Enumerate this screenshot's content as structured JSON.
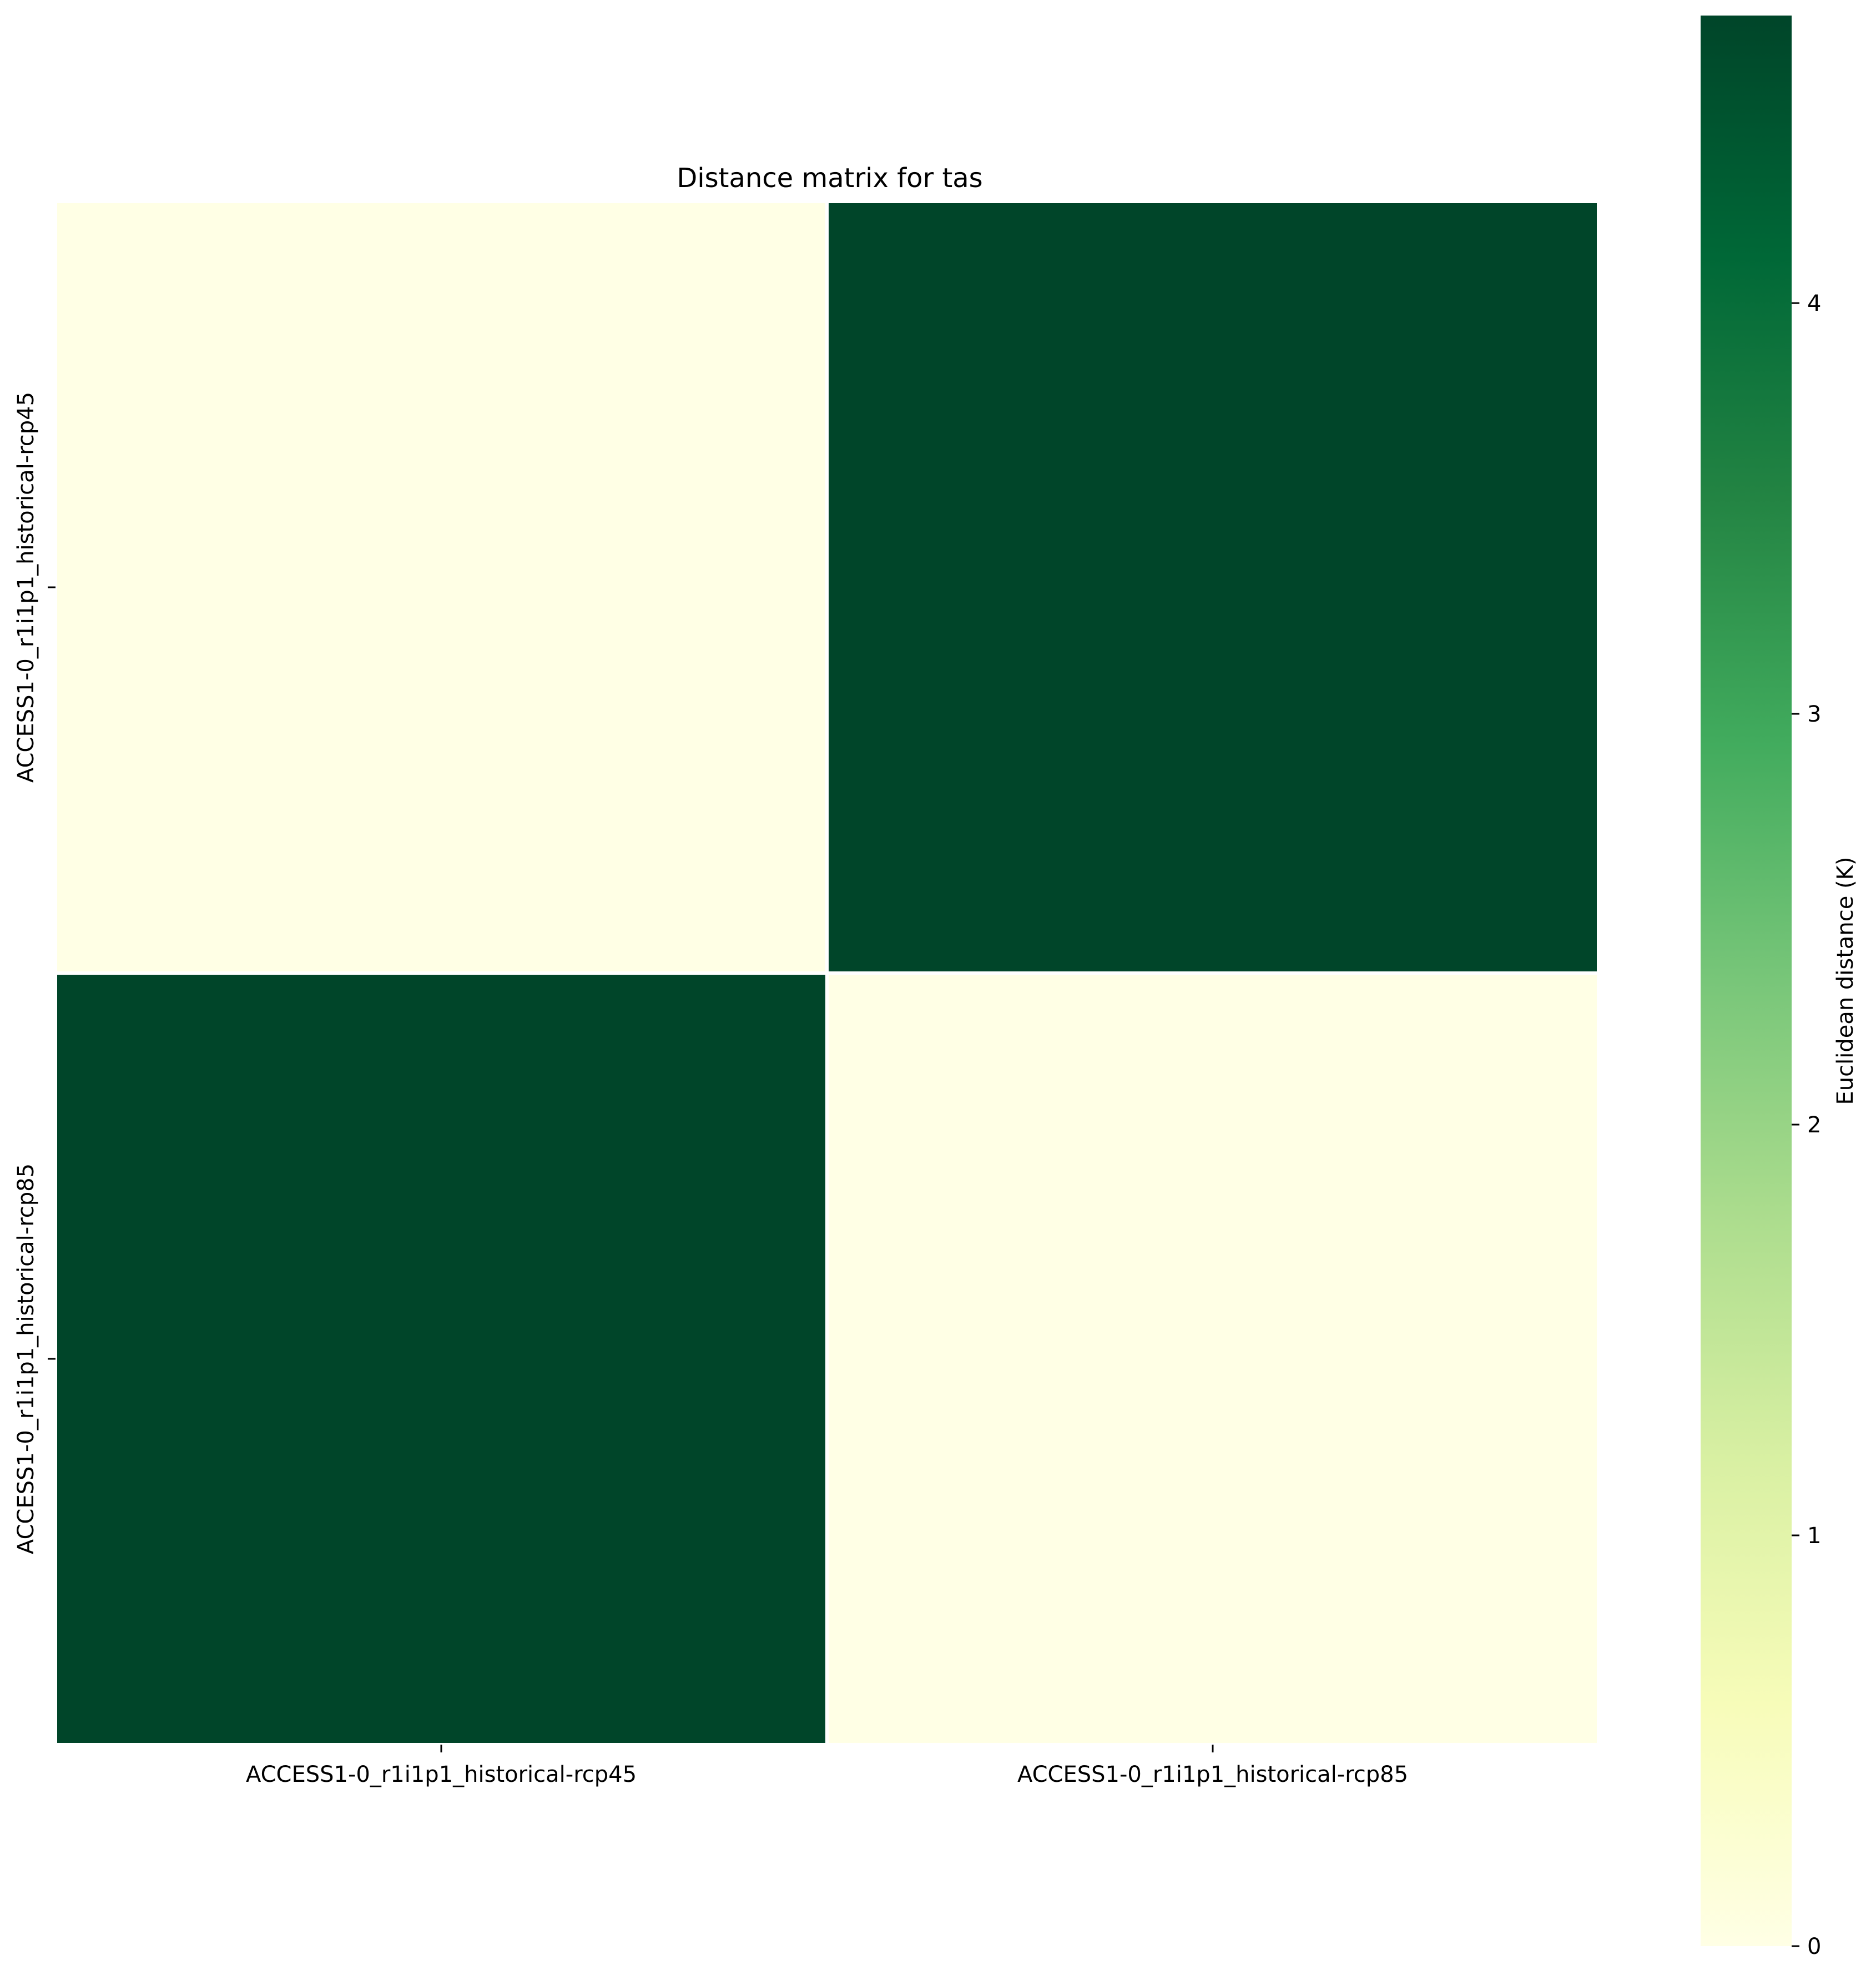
{
  "chart_data": {
    "type": "heatmap",
    "title": "Distance matrix for tas",
    "rows": [
      "ACCESS1-0_r1i1p1_historical-rcp45",
      "ACCESS1-0_r1i1p1_historical-rcp85"
    ],
    "columns": [
      "ACCESS1-0_r1i1p1_historical-rcp45",
      "ACCESS1-0_r1i1p1_historical-rcp85"
    ],
    "values": [
      [
        0,
        4.7
      ],
      [
        4.7,
        0
      ]
    ],
    "colorbar": {
      "label": "Euclidean distance (K)",
      "min": 0,
      "max": 4.7,
      "ticks": [
        "0",
        "1",
        "2",
        "3",
        "4"
      ],
      "colormap": "YlGn",
      "stops": [
        "#ffffe5",
        "#f7fcb9",
        "#d9f0a3",
        "#addd8e",
        "#78c679",
        "#41ab5d",
        "#238443",
        "#006837",
        "#004529"
      ]
    },
    "grid": false
  }
}
